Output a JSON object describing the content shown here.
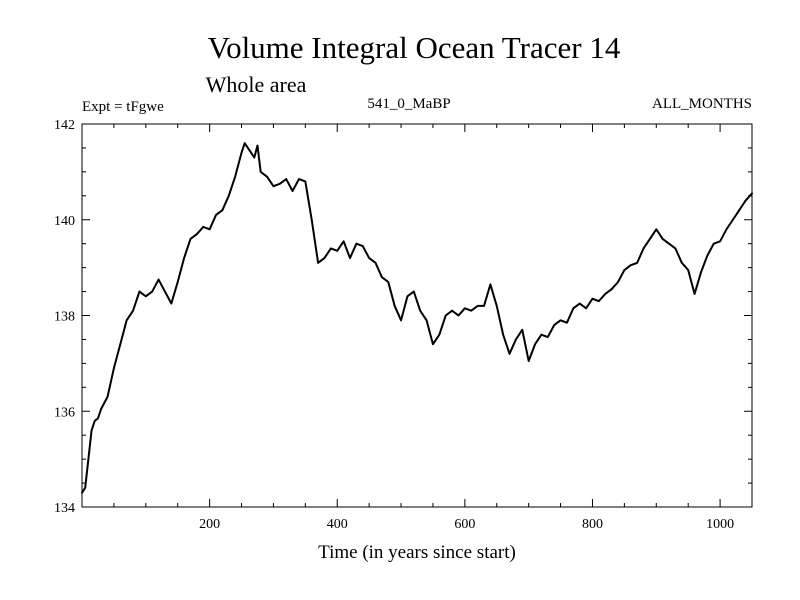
{
  "chart_data": {
    "type": "line",
    "title": "Volume Integral Ocean Tracer 14",
    "subtitle": "Whole area",
    "left_annotation": "Expt = tFgwe",
    "center_annotation": "541_0_MaBP",
    "right_annotation": "ALL_MONTHS",
    "xlabel": "Time (in years since start)",
    "ylabel": "",
    "xlim": [
      0,
      1050
    ],
    "ylim": [
      134,
      142
    ],
    "x_ticks": [
      200,
      400,
      600,
      800,
      1000
    ],
    "y_ticks": [
      134,
      136,
      138,
      140,
      142
    ],
    "grid": false,
    "series": [
      {
        "color": "#000000",
        "x": [
          0,
          5,
          10,
          15,
          20,
          25,
          30,
          40,
          50,
          60,
          70,
          80,
          90,
          100,
          110,
          120,
          130,
          140,
          150,
          160,
          170,
          180,
          190,
          200,
          210,
          220,
          230,
          240,
          250,
          255,
          260,
          270,
          275,
          280,
          290,
          300,
          310,
          320,
          330,
          340,
          350,
          360,
          370,
          380,
          390,
          400,
          410,
          420,
          430,
          440,
          450,
          460,
          470,
          480,
          490,
          500,
          510,
          520,
          530,
          540,
          550,
          560,
          570,
          580,
          590,
          600,
          610,
          620,
          630,
          640,
          650,
          660,
          670,
          680,
          690,
          700,
          710,
          720,
          730,
          740,
          750,
          760,
          770,
          780,
          790,
          800,
          810,
          820,
          830,
          840,
          850,
          860,
          870,
          880,
          890,
          900,
          910,
          920,
          930,
          940,
          950,
          960,
          970,
          980,
          990,
          1000,
          1010,
          1020,
          1030,
          1040,
          1050
        ],
        "y": [
          134.3,
          134.4,
          135.0,
          135.6,
          135.8,
          135.85,
          136.05,
          136.3,
          136.9,
          137.4,
          137.9,
          138.1,
          138.5,
          138.4,
          138.5,
          138.75,
          138.5,
          138.25,
          138.7,
          139.2,
          139.6,
          139.7,
          139.85,
          139.8,
          140.1,
          140.2,
          140.5,
          140.9,
          141.4,
          141.6,
          141.5,
          141.3,
          141.55,
          141.0,
          140.9,
          140.7,
          140.75,
          140.85,
          140.6,
          140.85,
          140.8,
          140.0,
          139.1,
          139.2,
          139.4,
          139.35,
          139.55,
          139.2,
          139.5,
          139.45,
          139.2,
          139.1,
          138.8,
          138.7,
          138.2,
          137.9,
          138.4,
          138.5,
          138.1,
          137.9,
          137.4,
          137.6,
          138.0,
          138.1,
          138.0,
          138.15,
          138.1,
          138.2,
          138.2,
          138.65,
          138.2,
          137.6,
          137.2,
          137.5,
          137.7,
          137.05,
          137.4,
          137.6,
          137.55,
          137.8,
          137.9,
          137.85,
          138.15,
          138.25,
          138.15,
          138.35,
          138.3,
          138.45,
          138.55,
          138.7,
          138.95,
          139.05,
          139.1,
          139.4,
          139.6,
          139.8,
          139.6,
          139.5,
          139.4,
          139.1,
          138.95,
          138.45,
          138.9,
          139.25,
          139.5,
          139.55,
          139.8,
          140.0,
          140.2,
          140.4,
          140.55
        ]
      }
    ]
  }
}
